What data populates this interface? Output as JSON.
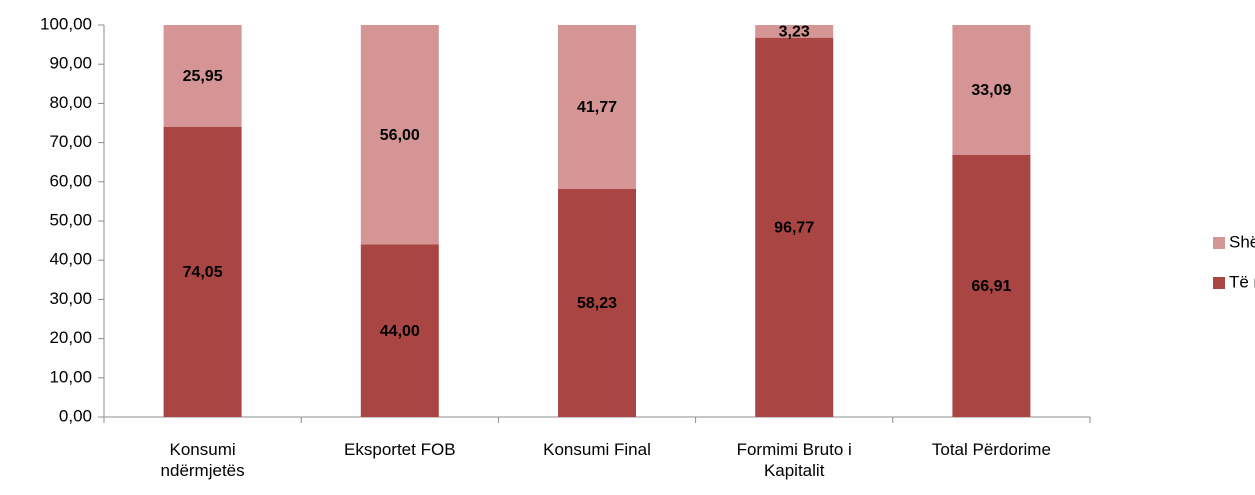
{
  "chart_data": {
    "type": "stacked_bar",
    "categories": [
      "Konsumi ndërmjetës",
      "Eksportet FOB",
      "Konsumi Final",
      "Formimi Bruto i Kapitalit",
      "Total Përdorime"
    ],
    "series": [
      {
        "name": "Të mirat",
        "color": "#a94643",
        "values": [
          74.05,
          44.0,
          58.23,
          96.77,
          66.91
        ],
        "value_labels": [
          "74,05",
          "44,00",
          "58,23",
          "96,77",
          "66,91"
        ]
      },
      {
        "name": "Shërbime",
        "color": "#d49594",
        "values": [
          25.95,
          56.0,
          41.77,
          3.23,
          33.09
        ],
        "value_labels": [
          "25,95",
          "56,00",
          "41,77",
          "3,23",
          "33,09"
        ]
      }
    ],
    "ylim": [
      0,
      100
    ],
    "yticks": [
      {
        "value": 0,
        "label": "0,00"
      },
      {
        "value": 10,
        "label": "10,00"
      },
      {
        "value": 20,
        "label": "20,00"
      },
      {
        "value": 30,
        "label": "30,00"
      },
      {
        "value": 40,
        "label": "40,00"
      },
      {
        "value": 50,
        "label": "50,00"
      },
      {
        "value": 60,
        "label": "60,00"
      },
      {
        "value": 70,
        "label": "70,00"
      },
      {
        "value": 80,
        "label": "80,00"
      },
      {
        "value": 90,
        "label": "90,00"
      },
      {
        "value": 100,
        "label": "100,00"
      }
    ],
    "legend": "right"
  }
}
